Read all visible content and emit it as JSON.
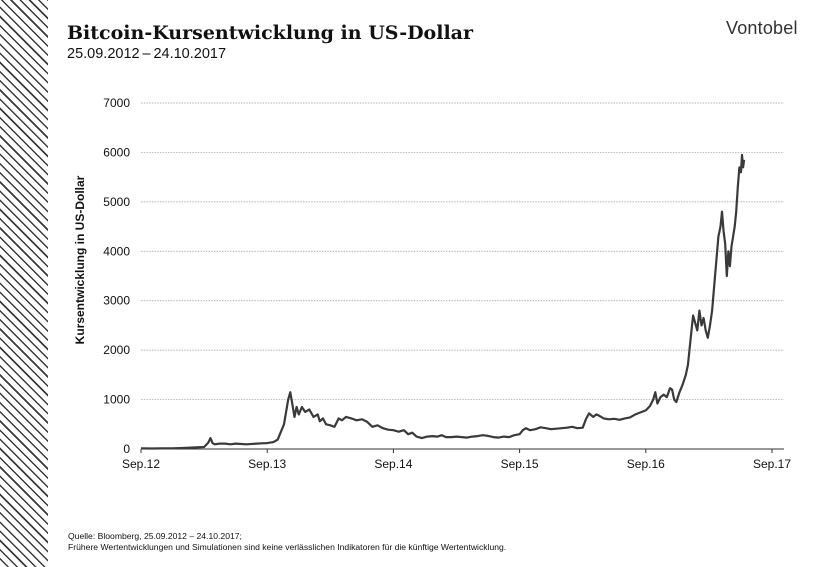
{
  "header": {
    "title": "Bitcoin-Kursentwicklung in US-Dollar",
    "subtitle": "25.09.2012 – 24.10.2017",
    "logo": "Vontobel"
  },
  "footer": {
    "source_line": "Quelle: Bloomberg,  25.09.2012 – 24.10.2017;",
    "disclaimer_line": "Frühere Wertentwicklungen und Simulationen sind keine verlässlichen Indikatoren für die künftige Wertentwicklung."
  },
  "colors": {
    "line": "#3a3a3a",
    "grid": "#9a9a9a",
    "axis": "#333333"
  },
  "chart_data": {
    "type": "line",
    "ylabel": "Kursentwicklung  in US-Dollar",
    "xlabel": "",
    "ylim": [
      0,
      7000
    ],
    "yticks": [
      0,
      1000,
      2000,
      3000,
      4000,
      5000,
      6000,
      7000
    ],
    "xlim": [
      0,
      61
    ],
    "xticks": [
      {
        "value": 0,
        "label": "Sep.12"
      },
      {
        "value": 12,
        "label": "Sep.13"
      },
      {
        "value": 24,
        "label": "Sep.14"
      },
      {
        "value": 36,
        "label": "Sep.15"
      },
      {
        "value": 48,
        "label": "Sep.16"
      },
      {
        "value": 60,
        "label": "Sep.17"
      }
    ],
    "grid": true,
    "series": [
      {
        "name": "",
        "points": [
          [
            0,
            12
          ],
          [
            1,
            11
          ],
          [
            2,
            12
          ],
          [
            3,
            13
          ],
          [
            4,
            20
          ],
          [
            5,
            30
          ],
          [
            6,
            40
          ],
          [
            6.4,
            130
          ],
          [
            6.6,
            220
          ],
          [
            6.8,
            120
          ],
          [
            7,
            95
          ],
          [
            7.5,
            110
          ],
          [
            8,
            110
          ],
          [
            8.5,
            95
          ],
          [
            9,
            110
          ],
          [
            10,
            95
          ],
          [
            11,
            110
          ],
          [
            11.5,
            115
          ],
          [
            12,
            120
          ],
          [
            12.6,
            140
          ],
          [
            13,
            190
          ],
          [
            13.6,
            500
          ],
          [
            14.0,
            1000
          ],
          [
            14.2,
            1150
          ],
          [
            14.4,
            900
          ],
          [
            14.6,
            650
          ],
          [
            14.8,
            850
          ],
          [
            15,
            700
          ],
          [
            15.3,
            850
          ],
          [
            15.6,
            750
          ],
          [
            16,
            800
          ],
          [
            16.4,
            650
          ],
          [
            16.8,
            700
          ],
          [
            17,
            560
          ],
          [
            17.3,
            620
          ],
          [
            17.6,
            500
          ],
          [
            18,
            480
          ],
          [
            18.4,
            450
          ],
          [
            18.8,
            620
          ],
          [
            19.1,
            580
          ],
          [
            19.5,
            650
          ],
          [
            20,
            620
          ],
          [
            20.5,
            580
          ],
          [
            21,
            600
          ],
          [
            21.5,
            550
          ],
          [
            22,
            450
          ],
          [
            22.5,
            480
          ],
          [
            23,
            420
          ],
          [
            23.5,
            390
          ],
          [
            24,
            380
          ],
          [
            24.5,
            350
          ],
          [
            25,
            380
          ],
          [
            25.4,
            300
          ],
          [
            25.8,
            330
          ],
          [
            26.2,
            250
          ],
          [
            26.7,
            220
          ],
          [
            27.2,
            250
          ],
          [
            27.7,
            260
          ],
          [
            28.2,
            250
          ],
          [
            28.6,
            280
          ],
          [
            29,
            240
          ],
          [
            29.5,
            240
          ],
          [
            30,
            250
          ],
          [
            30.5,
            240
          ],
          [
            31,
            230
          ],
          [
            31.5,
            250
          ],
          [
            32,
            260
          ],
          [
            32.5,
            280
          ],
          [
            33,
            265
          ],
          [
            33.5,
            240
          ],
          [
            34,
            230
          ],
          [
            34.5,
            250
          ],
          [
            35,
            240
          ],
          [
            35.5,
            280
          ],
          [
            36,
            300
          ],
          [
            36.3,
            380
          ],
          [
            36.6,
            420
          ],
          [
            37,
            380
          ],
          [
            37.5,
            400
          ],
          [
            38,
            440
          ],
          [
            38.5,
            420
          ],
          [
            39,
            400
          ],
          [
            39.5,
            410
          ],
          [
            40,
            420
          ],
          [
            40.5,
            430
          ],
          [
            41,
            450
          ],
          [
            41.5,
            420
          ],
          [
            42,
            430
          ],
          [
            42.3,
            600
          ],
          [
            42.6,
            720
          ],
          [
            43,
            650
          ],
          [
            43.3,
            700
          ],
          [
            43.6,
            670
          ],
          [
            44,
            620
          ],
          [
            44.5,
            600
          ],
          [
            45,
            610
          ],
          [
            45.5,
            590
          ],
          [
            46,
            620
          ],
          [
            46.5,
            640
          ],
          [
            47,
            700
          ],
          [
            47.5,
            740
          ],
          [
            48,
            780
          ],
          [
            48.4,
            870
          ],
          [
            48.7,
            1000
          ],
          [
            48.9,
            1150
          ],
          [
            49.1,
            920
          ],
          [
            49.4,
            1050
          ],
          [
            49.7,
            1100
          ],
          [
            50,
            1050
          ],
          [
            50.3,
            1230
          ],
          [
            50.5,
            1200
          ],
          [
            50.7,
            1000
          ],
          [
            50.9,
            950
          ],
          [
            51.2,
            1150
          ],
          [
            51.5,
            1300
          ],
          [
            51.8,
            1500
          ],
          [
            52.0,
            1700
          ],
          [
            52.3,
            2300
          ],
          [
            52.5,
            2700
          ],
          [
            52.7,
            2550
          ],
          [
            52.9,
            2400
          ],
          [
            53.1,
            2800
          ],
          [
            53.3,
            2500
          ],
          [
            53.5,
            2650
          ],
          [
            53.7,
            2400
          ],
          [
            53.9,
            2250
          ],
          [
            54.1,
            2500
          ],
          [
            54.3,
            2800
          ],
          [
            54.5,
            3300
          ],
          [
            54.7,
            3800
          ],
          [
            54.9,
            4300
          ],
          [
            55.1,
            4500
          ],
          [
            55.25,
            4800
          ],
          [
            55.4,
            4400
          ],
          [
            55.55,
            4150
          ],
          [
            55.7,
            3500
          ],
          [
            55.85,
            4000
          ],
          [
            56.0,
            3700
          ],
          [
            56.15,
            4100
          ],
          [
            56.3,
            4300
          ],
          [
            56.45,
            4500
          ],
          [
            56.6,
            4800
          ],
          [
            56.75,
            5300
          ],
          [
            56.9,
            5700
          ],
          [
            57.05,
            5600
          ],
          [
            57.15,
            5950
          ],
          [
            57.25,
            5700
          ],
          [
            57.35,
            5850
          ]
        ]
      }
    ]
  }
}
